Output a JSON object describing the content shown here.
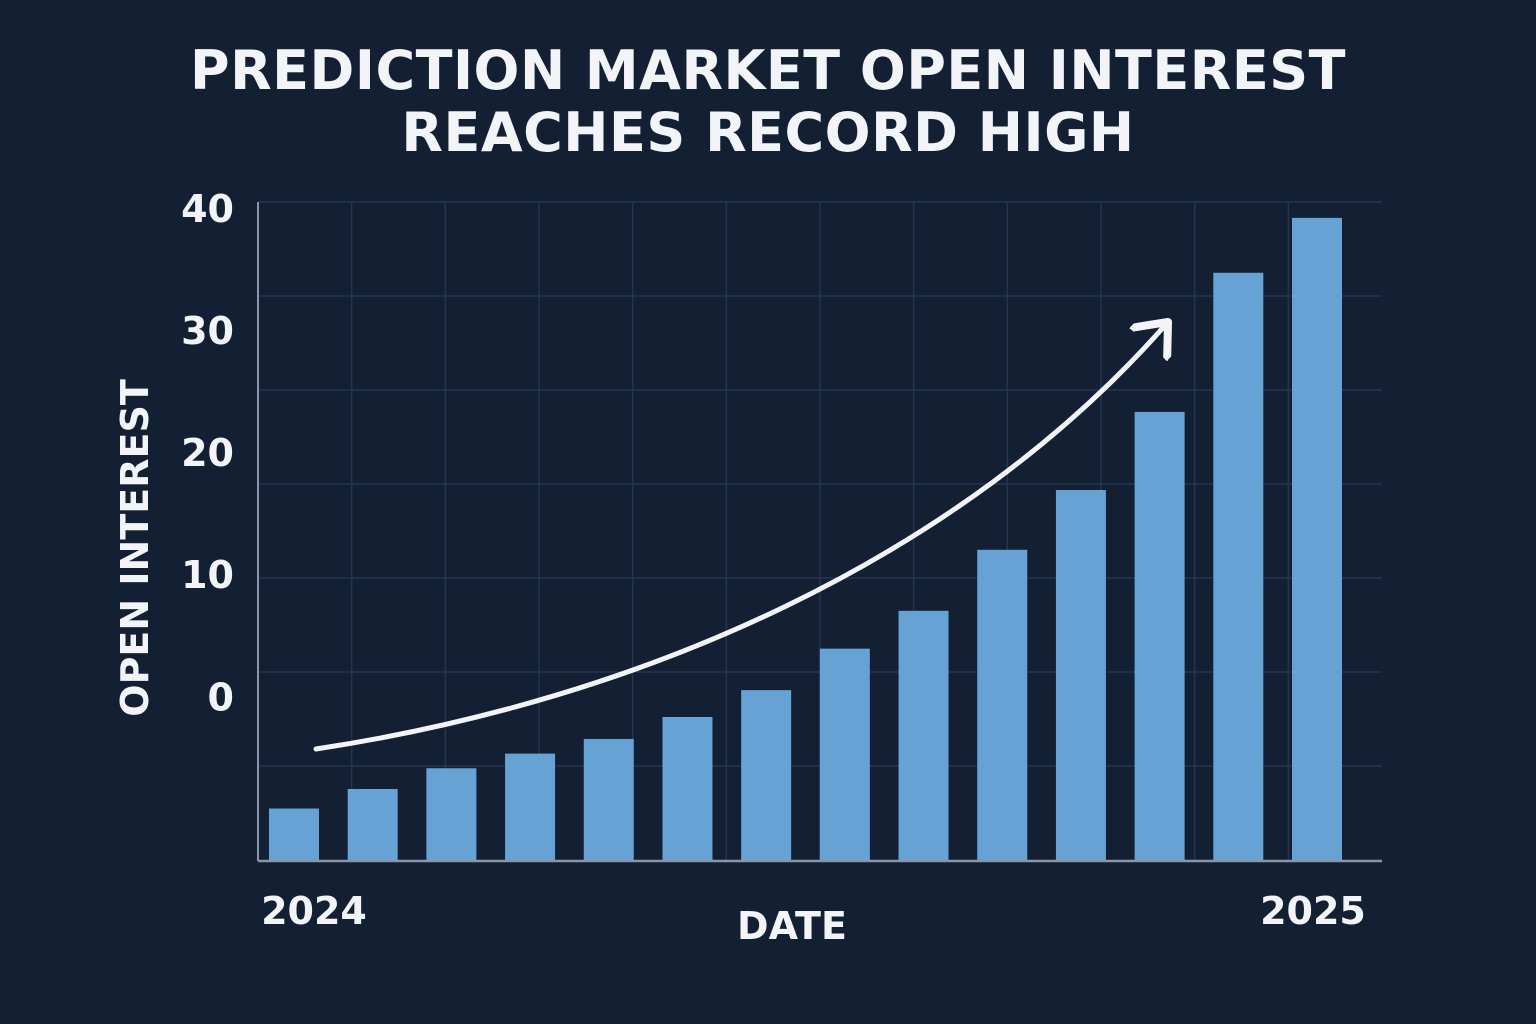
{
  "colors": {
    "background": "#132034",
    "grid": "#233550",
    "axis": "#8a96a8",
    "bar": "#67a2d4",
    "text": "#f2f4f7",
    "arrow": "#f2f4f7"
  },
  "chart_data": {
    "type": "bar",
    "title_lines": [
      "PREDICTION MARKET OPEN INTEREST",
      "REACHES RECORD HIGH"
    ],
    "xlabel": "DATE",
    "ylabel": "OPEN INTEREST",
    "x_tick_labels": [
      "2024",
      "2025"
    ],
    "y_ticks": [
      0,
      10,
      20,
      30,
      40
    ],
    "ylim": [
      -13.5,
      40.5
    ],
    "grid": true,
    "trend_arrow": true,
    "categories": [
      "",
      "",
      "",
      "",
      "",
      "",
      "",
      "",
      "",
      "",
      "",
      "",
      "",
      ""
    ],
    "values": [
      -9.2,
      -7.6,
      -5.9,
      -4.7,
      -3.5,
      -1.7,
      0.5,
      3.9,
      7.0,
      12.0,
      16.9,
      23.3,
      34.7,
      39.2
    ]
  }
}
